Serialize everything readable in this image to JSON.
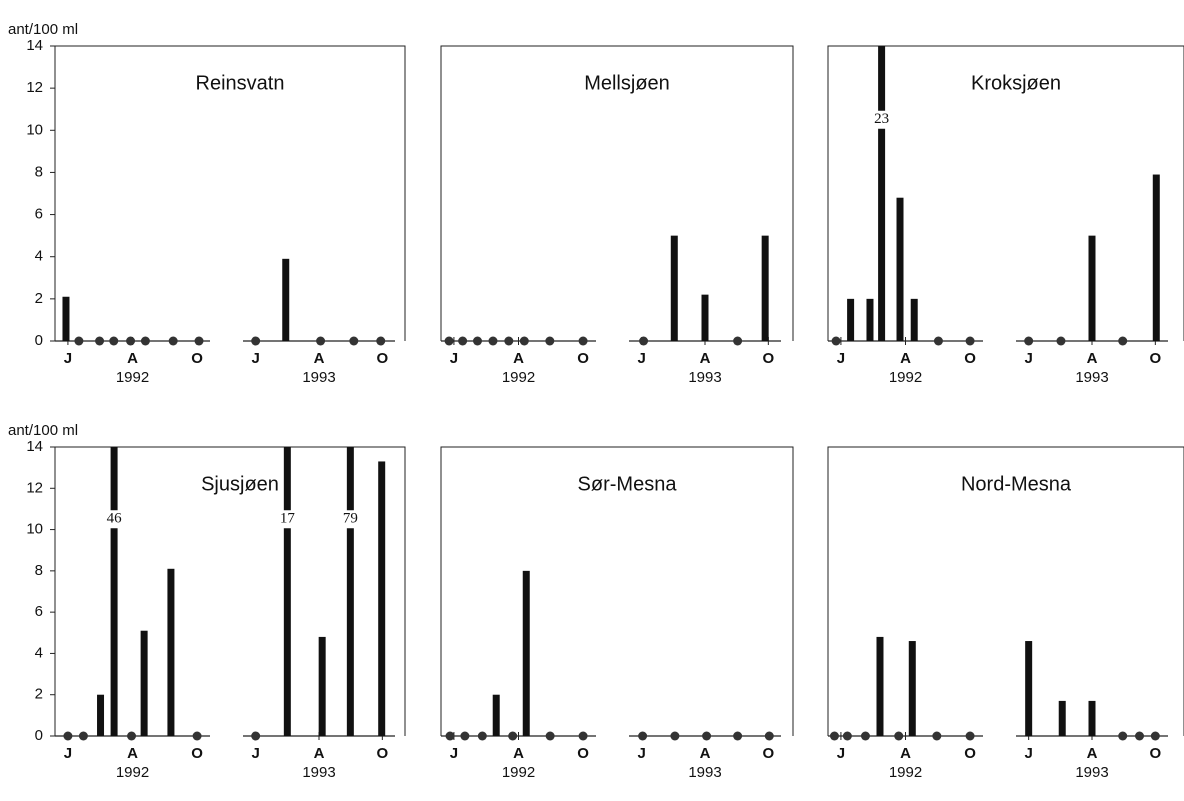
{
  "chart_data": [
    {
      "type": "bar",
      "title": "Reinsvatn",
      "ylabel": "ant/100 ml",
      "color": "#111",
      "ylim": [
        0,
        14
      ],
      "yticks": [
        0,
        2,
        4,
        6,
        8,
        10,
        12,
        14
      ],
      "segments": [
        {
          "label": "1992",
          "xlim": [
            5.6,
            10.4
          ],
          "xticks": [
            {
              "value": 6,
              "label": "J"
            },
            {
              "value": 8,
              "label": "A"
            },
            {
              "value": 10,
              "label": "O"
            }
          ],
          "x": [
            5.94,
            6.34,
            6.98,
            7.42,
            7.94,
            8.4,
            9.26,
            10.06
          ],
          "values": [
            2.1,
            0,
            0,
            0,
            0,
            0,
            0,
            0
          ]
        },
        {
          "label": "1993",
          "xlim": [
            5.6,
            10.4
          ],
          "xticks": [
            {
              "value": 6,
              "label": "J"
            },
            {
              "value": 8,
              "label": "A"
            },
            {
              "value": 10,
              "label": "O"
            }
          ],
          "x": [
            6.0,
            6.95,
            8.05,
            9.1,
            9.95
          ],
          "values": [
            0,
            3.9,
            0,
            0,
            0
          ]
        }
      ]
    },
    {
      "type": "bar",
      "title": "Mellsjøen",
      "color": "#111",
      "ylim": [
        0,
        14
      ],
      "segments": [
        {
          "label": "1992",
          "xlim": [
            5.6,
            10.4
          ],
          "xticks": [
            {
              "value": 6,
              "label": "J"
            },
            {
              "value": 8,
              "label": "A"
            },
            {
              "value": 10,
              "label": "O"
            }
          ],
          "x": [
            5.85,
            6.27,
            6.73,
            7.21,
            7.7,
            8.18,
            8.97,
            10.0
          ],
          "values": [
            0,
            0,
            0,
            0,
            0,
            0,
            0,
            0
          ]
        },
        {
          "label": "1993",
          "xlim": [
            5.6,
            10.4
          ],
          "xticks": [
            {
              "value": 6,
              "label": "J"
            },
            {
              "value": 8,
              "label": "A"
            },
            {
              "value": 10,
              "label": "O"
            }
          ],
          "x": [
            6.06,
            7.03,
            8.0,
            9.03,
            9.9
          ],
          "values": [
            0,
            5.0,
            2.2,
            0,
            5.0
          ]
        }
      ]
    },
    {
      "type": "bar",
      "title": "Kroksjøen",
      "color": "#111",
      "ylim": [
        0,
        14
      ],
      "segments": [
        {
          "label": "1992",
          "xlim": [
            5.6,
            10.4
          ],
          "xticks": [
            {
              "value": 6,
              "label": "J"
            },
            {
              "value": 8,
              "label": "A"
            },
            {
              "value": 10,
              "label": "O"
            }
          ],
          "x": [
            5.85,
            6.3,
            6.9,
            7.26,
            7.83,
            8.27,
            9.02,
            10.0
          ],
          "values": [
            0,
            2.0,
            2.0,
            23,
            6.8,
            2.0,
            0,
            0
          ]
        },
        {
          "label": "1993",
          "xlim": [
            5.6,
            10.4
          ],
          "xticks": [
            {
              "value": 6,
              "label": "J"
            },
            {
              "value": 8,
              "label": "A"
            },
            {
              "value": 10,
              "label": "O"
            }
          ],
          "x": [
            6.0,
            7.02,
            8.0,
            8.97,
            10.03
          ],
          "values": [
            0,
            0,
            5.0,
            0,
            7.9
          ]
        }
      ]
    },
    {
      "type": "bar",
      "title": "Sjusjøen",
      "ylabel": "ant/100 ml",
      "color": "#111",
      "ylim": [
        0,
        14
      ],
      "yticks": [
        0,
        2,
        4,
        6,
        8,
        10,
        12,
        14
      ],
      "segments": [
        {
          "label": "1992",
          "xlim": [
            5.6,
            10.4
          ],
          "xticks": [
            {
              "value": 6,
              "label": "J"
            },
            {
              "value": 8,
              "label": "A"
            },
            {
              "value": 10,
              "label": "O"
            }
          ],
          "x": [
            6.0,
            6.48,
            7.01,
            7.43,
            7.97,
            8.36,
            9.19,
            10.0
          ],
          "values": [
            0,
            0,
            2.0,
            46,
            0,
            5.1,
            8.1,
            0
          ]
        },
        {
          "label": "1993",
          "xlim": [
            5.6,
            10.4
          ],
          "xticks": [
            {
              "value": 6,
              "label": "J"
            },
            {
              "value": 8,
              "label": "A"
            },
            {
              "value": 10,
              "label": "O"
            }
          ],
          "x": [
            6.0,
            7.0,
            8.1,
            8.99,
            9.98
          ],
          "values": [
            0,
            17,
            4.8,
            79,
            13.3
          ]
        }
      ]
    },
    {
      "type": "bar",
      "title": "Sør-Mesna",
      "color": "#111",
      "ylim": [
        0,
        14
      ],
      "segments": [
        {
          "label": "1992",
          "xlim": [
            5.6,
            10.4
          ],
          "xticks": [
            {
              "value": 6,
              "label": "J"
            },
            {
              "value": 8,
              "label": "A"
            },
            {
              "value": 10,
              "label": "O"
            }
          ],
          "x": [
            5.88,
            6.34,
            6.88,
            7.31,
            7.82,
            8.24,
            8.98,
            10.0
          ],
          "values": [
            0,
            0,
            0,
            2.0,
            0,
            8.0,
            0,
            0
          ]
        },
        {
          "label": "1993",
          "xlim": [
            5.6,
            10.4
          ],
          "xticks": [
            {
              "value": 6,
              "label": "J"
            },
            {
              "value": 8,
              "label": "A"
            },
            {
              "value": 10,
              "label": "O"
            }
          ],
          "x": [
            6.03,
            7.05,
            8.05,
            9.03,
            10.03
          ],
          "values": [
            0,
            0,
            0,
            0,
            0
          ]
        }
      ]
    },
    {
      "type": "bar",
      "title": "Nord-Mesna",
      "color": "#111",
      "ylim": [
        0,
        14
      ],
      "segments": [
        {
          "label": "1992",
          "xlim": [
            5.6,
            10.4
          ],
          "xticks": [
            {
              "value": 6,
              "label": "J"
            },
            {
              "value": 8,
              "label": "A"
            },
            {
              "value": 10,
              "label": "O"
            }
          ],
          "x": [
            5.8,
            6.2,
            6.76,
            7.21,
            7.79,
            8.21,
            8.97,
            10.0
          ],
          "values": [
            0,
            0,
            0,
            4.8,
            0,
            4.6,
            0,
            0
          ]
        },
        {
          "label": "1993",
          "xlim": [
            5.6,
            10.4
          ],
          "xticks": [
            {
              "value": 6,
              "label": "J"
            },
            {
              "value": 8,
              "label": "A"
            },
            {
              "value": 10,
              "label": "O"
            }
          ],
          "x": [
            6.0,
            7.06,
            8.0,
            8.97,
            9.5,
            10.0
          ],
          "values": [
            4.6,
            1.7,
            1.7,
            0,
            0,
            0
          ]
        }
      ]
    }
  ]
}
